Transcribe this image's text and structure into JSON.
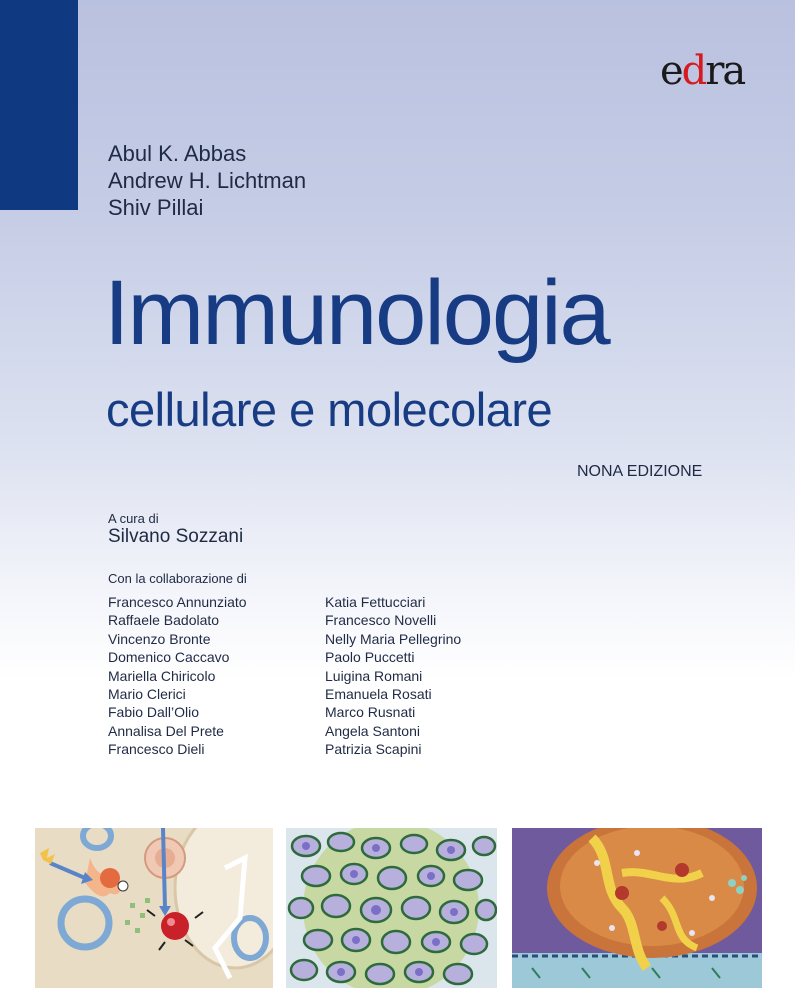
{
  "publisher": {
    "logo_text": "edra",
    "logo_e": "e",
    "logo_d": "d",
    "logo_ra": "ra",
    "accent_color": "#d71920"
  },
  "authors": [
    "Abul K. Abbas",
    "Andrew H. Lichtman",
    "Shiv Pillai"
  ],
  "title": "Immunologia",
  "subtitle": "cellulare e molecolare",
  "edition": "NONA EDIZIONE",
  "curator_label": "A cura di",
  "curator": "Silvano Sozzani",
  "collaboration_label": "Con la collaborazione di",
  "collaborators_col1": [
    "Francesco Annunziato",
    "Raffaele Badolato",
    "Vincenzo Bronte",
    "Domenico Caccavo",
    "Mariella Chiricolo",
    "Mario Clerici",
    "Fabio Dall’Olio",
    "Annalisa Del Prete",
    "Francesco Dieli"
  ],
  "collaborators_col2": [
    "Katia Fettucciari",
    "Francesco Novelli",
    "Nelly Maria Pellegrino",
    "Paolo Puccetti",
    "Luigina Romani",
    "Emanuela Rosati",
    "Marco Rusnati",
    "Angela Santoni",
    "Patrizia Scapini"
  ],
  "colors": {
    "brand_blue": "#0f3a82",
    "title_blue": "#183c84"
  },
  "images": [
    "cell-interaction-illustration",
    "tissue-cells-illustration",
    "cell-organelle-illustration"
  ]
}
